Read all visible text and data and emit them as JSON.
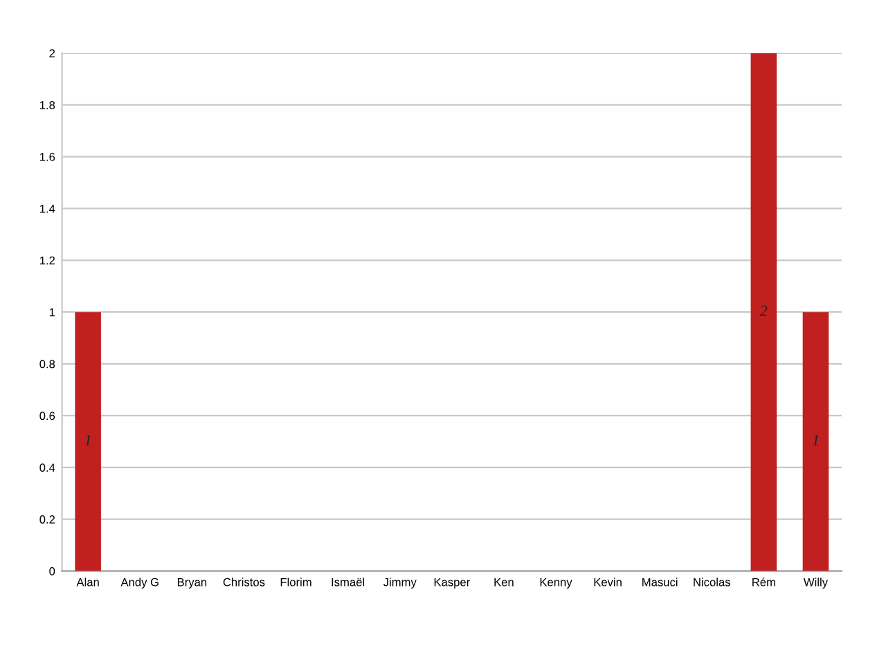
{
  "chart_data": {
    "type": "bar",
    "categories": [
      "Alan",
      "Andy G",
      "Bryan",
      "Christos",
      "Florim",
      "Ismaël",
      "Jimmy",
      "Kasper",
      "Ken",
      "Kenny",
      "Kevin",
      "Masuci",
      "Nicolas",
      "Rém",
      "Willy"
    ],
    "values": [
      1,
      0,
      0,
      0,
      0,
      0,
      0,
      0,
      0,
      0,
      0,
      0,
      0,
      2,
      1
    ],
    "value_labels": [
      "1",
      null,
      null,
      null,
      null,
      null,
      null,
      null,
      null,
      null,
      null,
      null,
      null,
      "2",
      "1"
    ],
    "color": "#c0201f",
    "ylim": [
      0,
      2
    ],
    "yticks": [
      0,
      0.2,
      0.4,
      0.6,
      0.8,
      1,
      1.2,
      1.4,
      1.6,
      1.8,
      2
    ],
    "grid": "y"
  }
}
